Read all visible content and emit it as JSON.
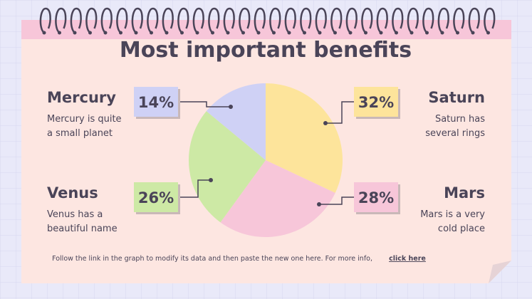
{
  "chart_data": {
    "type": "pie",
    "title": "Most important benefits",
    "categories": [
      "Saturn",
      "Mars",
      "Venus",
      "Mercury"
    ],
    "values": [
      32,
      28,
      26,
      14
    ],
    "value_labels": [
      "32%",
      "28%",
      "26%",
      "14%"
    ],
    "colors": [
      "#fde49b",
      "#f7c6d9",
      "#cde9a5",
      "#cfd1f5"
    ],
    "descriptions": [
      [
        "Saturn has",
        "several rings"
      ],
      [
        "Mars is a very",
        "cold place"
      ],
      [
        "Venus has a",
        "beautiful name"
      ],
      [
        "Mercury is quite",
        "a small planet"
      ]
    ],
    "note": "Follow the link in the graph to modify its data and then paste the new one here. For more info,",
    "link": "click here"
  }
}
